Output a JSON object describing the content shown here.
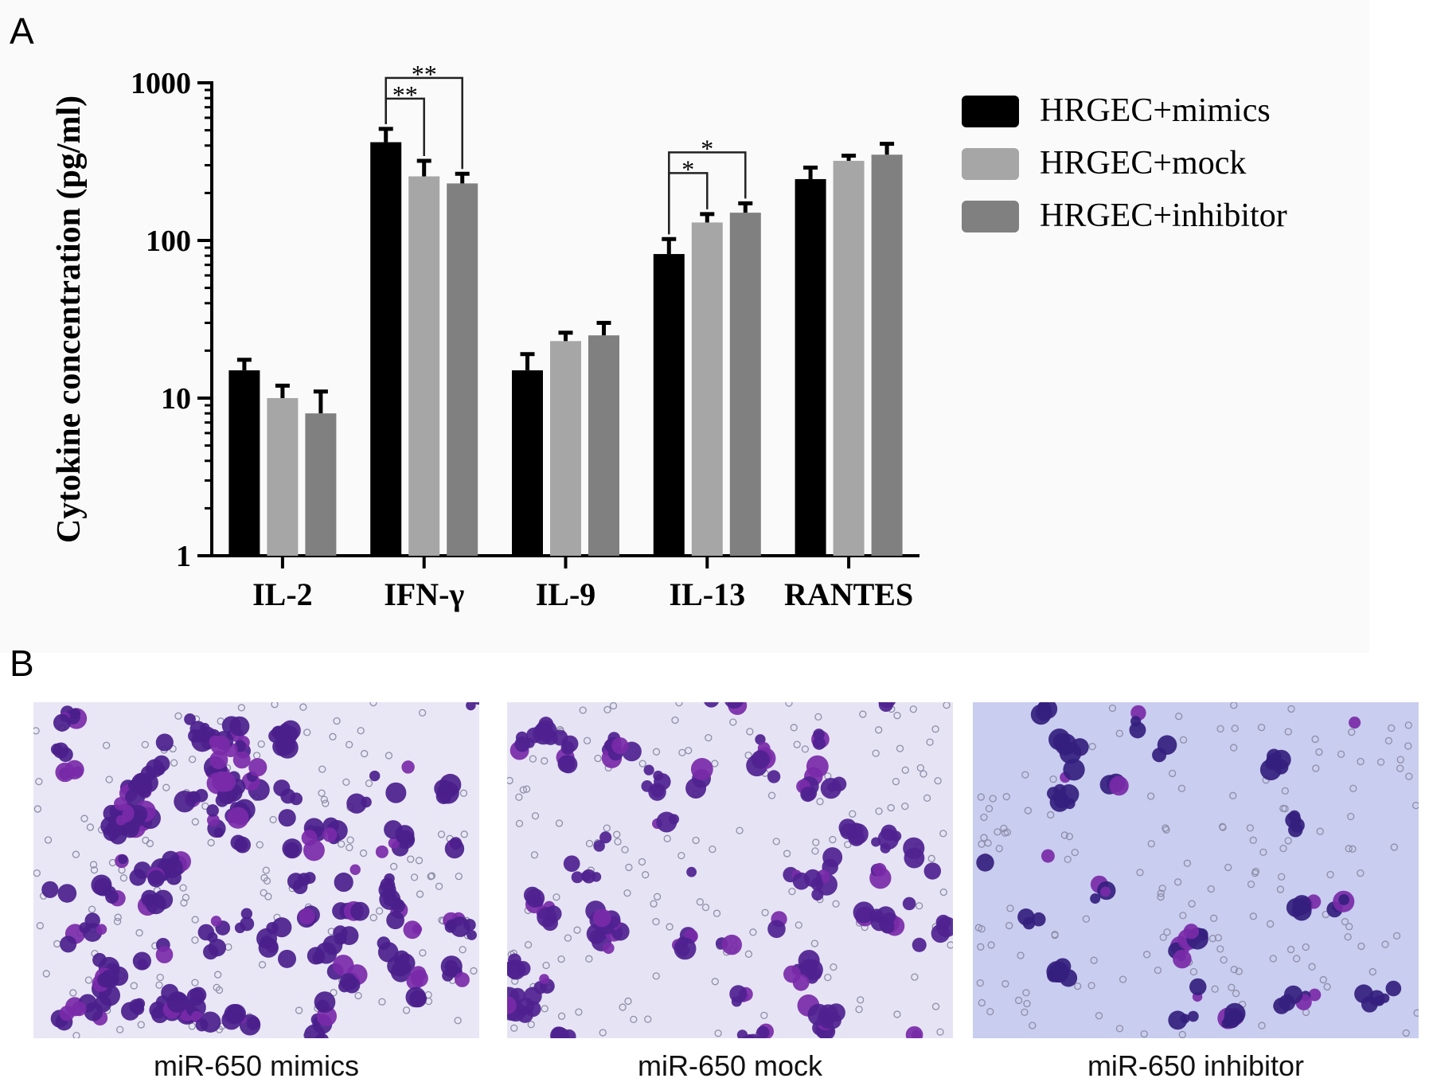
{
  "panel_labels": [
    "A",
    "B"
  ],
  "chart_data": {
    "type": "bar",
    "scale": "log",
    "ylabel": "Cytokine concentration (pg/ml)",
    "xlabel": "",
    "ylim": [
      1,
      1000
    ],
    "yticks": [
      1,
      10,
      100,
      1000
    ],
    "ytick_labels": [
      "1",
      "10",
      "100",
      "1000"
    ],
    "categories": [
      "IL-2",
      "IFN-γ",
      "IL-9",
      "IL-13",
      "RANTES"
    ],
    "series": [
      {
        "name": "HRGEC+mimics",
        "color": "#000000",
        "values": [
          15,
          420,
          15,
          82,
          245
        ],
        "errors": [
          2.5,
          90,
          4,
          20,
          45
        ]
      },
      {
        "name": "HRGEC+mock",
        "color": "#a6a6a6",
        "values": [
          10,
          255,
          23,
          130,
          320
        ],
        "errors": [
          2,
          65,
          3,
          17,
          25
        ]
      },
      {
        "name": "HRGEC+inhibitor",
        "color": "#808080",
        "values": [
          8,
          230,
          25,
          150,
          350
        ],
        "errors": [
          3,
          35,
          5,
          22,
          60
        ]
      }
    ],
    "significance": [
      {
        "category": "IFN-γ",
        "from": 0,
        "to": 1,
        "label": "**"
      },
      {
        "category": "IFN-γ",
        "from": 0,
        "to": 2,
        "label": "**"
      },
      {
        "category": "IL-13",
        "from": 0,
        "to": 1,
        "label": "*"
      },
      {
        "category": "IL-13",
        "from": 0,
        "to": 2,
        "label": "*"
      }
    ],
    "legend_position": "top-right",
    "grid": false
  },
  "micrographs": [
    {
      "caption": "miR-650 mimics",
      "background": "#e9e7f6",
      "cell_color": "#4a1f8c"
    },
    {
      "caption": "miR-650 mock",
      "background": "#e6e4f4",
      "cell_color": "#4f2290"
    },
    {
      "caption": "miR-650 inhibitor",
      "background": "#c9cdef",
      "cell_color": "#34207e"
    }
  ]
}
